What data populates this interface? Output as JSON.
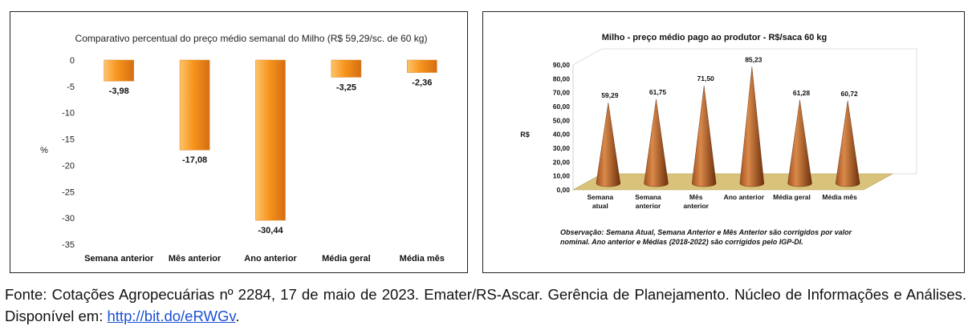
{
  "colors": {
    "bar_light": "#fdc46a",
    "bar_mid": "#f7941d",
    "bar_dark": "#c55a0a",
    "cone_light": "#d98a4a",
    "cone_dark": "#6e2f0a",
    "floor": "#d9c27a",
    "link": "#1a4fd6"
  },
  "chart_data": [
    {
      "type": "bar",
      "title": "Comparativo percentual do preço médio semanal do Milho (R$ 59,29/sc. de 60 kg)",
      "ylabel": "%",
      "ylim": [
        -35,
        0
      ],
      "yticks": [
        "0",
        "-5",
        "-10",
        "-15",
        "-20",
        "-25",
        "-30",
        "-35"
      ],
      "ytick_values": [
        0,
        -5,
        -10,
        -15,
        -20,
        -25,
        -30,
        -35
      ],
      "categories": [
        "Semana anterior",
        "Mês anterior",
        "Ano anterior",
        "Média geral",
        "Média mês"
      ],
      "values": [
        -3.98,
        -17.08,
        -30.44,
        -3.25,
        -2.36
      ],
      "labels": [
        "-3,98",
        "-17,08",
        "-30,44",
        "-3,25",
        "-2,36"
      ],
      "grid": false,
      "legend": "none"
    },
    {
      "type": "bar",
      "subtype": "3d-cone",
      "title": "Milho - preço médio pago ao produtor - R$/saca 60 kg",
      "ylabel": "R$",
      "ylim": [
        0,
        90
      ],
      "yticks": [
        "0,00",
        "10,00",
        "20,00",
        "30,00",
        "40,00",
        "50,00",
        "60,00",
        "70,00",
        "80,00",
        "90,00"
      ],
      "ytick_values": [
        0,
        10,
        20,
        30,
        40,
        50,
        60,
        70,
        80,
        90
      ],
      "categories": [
        [
          "Semana",
          "atual"
        ],
        [
          "Semana",
          "anterior"
        ],
        [
          "Mês",
          "anterior"
        ],
        [
          "Ano anterior"
        ],
        [
          "Média geral"
        ],
        [
          "Média mês"
        ]
      ],
      "values": [
        59.29,
        61.75,
        71.5,
        85.23,
        61.28,
        60.72
      ],
      "labels": [
        "59,29",
        "61,75",
        "71,50",
        "85,23",
        "61,28",
        "60,72"
      ],
      "note_lines": [
        "Observação: Semana Atual, Semana Anterior e Mês Anterior são corrigidos por valor",
        "nominal. Ano anterior e Médias (2018-2022) são corrigidos pelo IGP-DI."
      ],
      "grid": false,
      "legend": "none"
    }
  ],
  "caption": {
    "text": "Fonte: Cotações Agropecuárias nº 2284, 17 de maio de 2023. Emater/RS-Ascar. Gerência de Planejamento. Núcleo de Informações e Análises. Disponível em: ",
    "link": "http://bit.do/eRWGv",
    "end": "."
  }
}
